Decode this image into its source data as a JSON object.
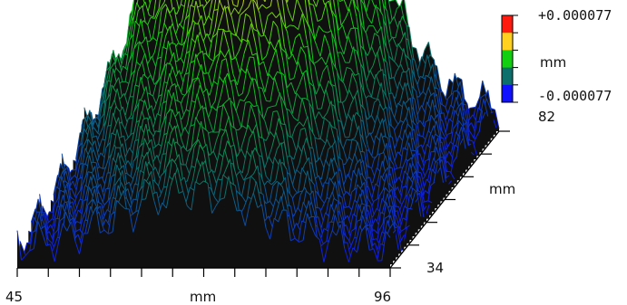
{
  "chart_data": {
    "type": "3d-surface",
    "rendering": "waterfall profile lines over black fill",
    "title": "",
    "x_axis": {
      "label": "mm",
      "min_label": "45",
      "max_label": "96",
      "range": [
        45,
        96
      ],
      "ticks": 12
    },
    "y_axis": {
      "label": "mm",
      "min_label": "34",
      "max_label": "82",
      "range": [
        34,
        82
      ],
      "ticks": 6
    },
    "z_scale": {
      "label": "mm",
      "max_label": "+0.000077",
      "min_label": "-0.000077",
      "range": [
        -7.7e-05,
        7.7e-05
      ],
      "colors": [
        "#ff1a10",
        "#ffd020",
        "#12d010",
        "#0c6f6c",
        "#1010ff"
      ]
    },
    "profiles": 40,
    "surface_shape": {
      "description": "ridge rising from the near edge to a peak near the back-center, red at the crest, yellow/green on the slopes, blue at the low right edge",
      "peak_x": 69,
      "peak_y": 78,
      "z_max": 7.7e-05,
      "z_min": -7.7e-05
    }
  },
  "colors": {
    "background": "#ffffff",
    "surface_fill": "#101010",
    "axis": "#000000"
  }
}
